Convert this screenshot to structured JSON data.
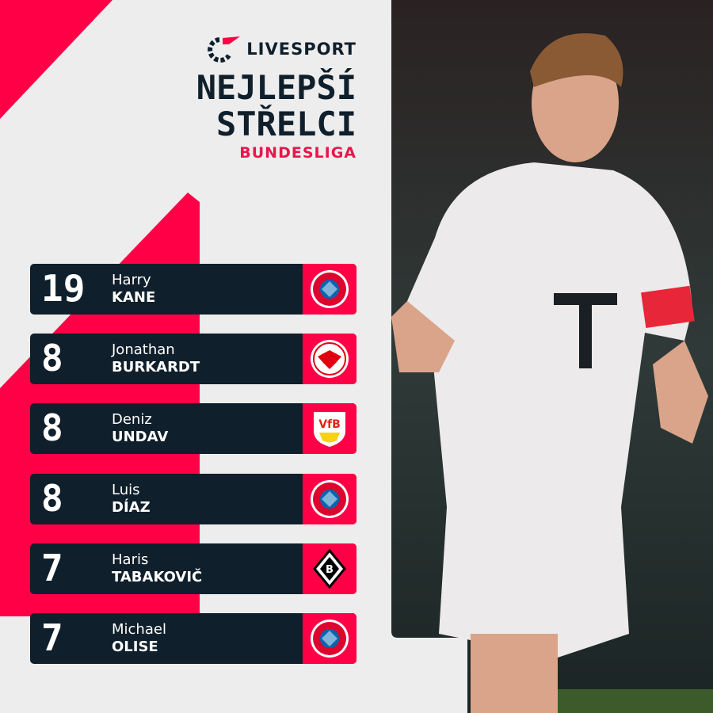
{
  "brand": {
    "name": "LIVESPORT",
    "accent": "#ff0046",
    "dark": "#0f1f2b"
  },
  "header": {
    "title_line1": "NEJLEPŠÍ",
    "title_line2": "STŘELCI",
    "league": "BUNDESLIGA"
  },
  "scorers": [
    {
      "goals": "19",
      "first": "Harry",
      "last": "KANE",
      "club": "bayern-munchen-crest"
    },
    {
      "goals": "8",
      "first": "Jonathan",
      "last": "BURKARDT",
      "club": "eintracht-frankfurt-crest"
    },
    {
      "goals": "8",
      "first": "Deniz",
      "last": "UNDAV",
      "club": "vfb-stuttgart-crest"
    },
    {
      "goals": "8",
      "first": "Luis",
      "last": "DÍAZ",
      "club": "bayern-munchen-crest"
    },
    {
      "goals": "7",
      "first": "Haris",
      "last": "TABAKOVIČ",
      "club": "borussia-monchengladbach-crest"
    },
    {
      "goals": "7",
      "first": "Michael",
      "last": "OLISE",
      "club": "bayern-munchen-crest"
    }
  ]
}
